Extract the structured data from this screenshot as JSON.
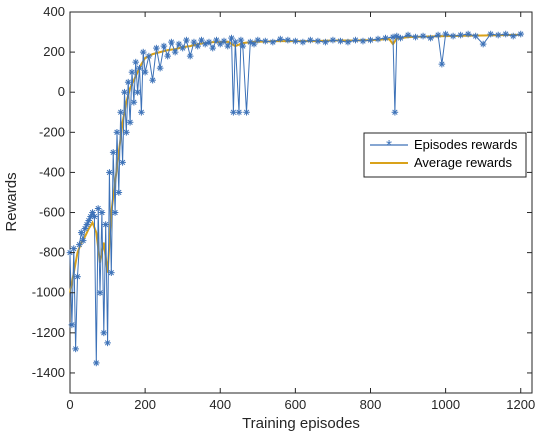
{
  "chart_data": {
    "type": "line",
    "xlabel": "Training episodes",
    "ylabel": "Rewards",
    "xlim": [
      0,
      1230
    ],
    "ylim": [
      -1500,
      400
    ],
    "xticks": [
      0,
      200,
      400,
      600,
      800,
      1000,
      1200
    ],
    "yticks": [
      400,
      200,
      0,
      -200,
      -400,
      -600,
      -800,
      -1000,
      -1200,
      -1400
    ],
    "grid": false,
    "legend_position": "center-right",
    "colors": {
      "episodes": "#3d72b8",
      "average": "#d9a21a",
      "axis": "#262626"
    },
    "series": [
      {
        "name": "Episodes rewards",
        "marker": "asterisk",
        "x": [
          0,
          5,
          10,
          15,
          20,
          25,
          30,
          35,
          40,
          45,
          50,
          55,
          60,
          65,
          70,
          75,
          80,
          85,
          90,
          95,
          100,
          105,
          110,
          115,
          120,
          125,
          130,
          135,
          140,
          145,
          150,
          155,
          160,
          165,
          170,
          175,
          180,
          185,
          190,
          195,
          200,
          210,
          220,
          230,
          240,
          250,
          260,
          270,
          280,
          290,
          300,
          310,
          320,
          330,
          340,
          350,
          360,
          370,
          380,
          390,
          400,
          410,
          420,
          430,
          435,
          440,
          450,
          455,
          460,
          470,
          480,
          490,
          500,
          520,
          540,
          560,
          580,
          600,
          620,
          640,
          660,
          680,
          700,
          720,
          740,
          760,
          780,
          800,
          820,
          840,
          860,
          865,
          870,
          880,
          900,
          920,
          940,
          960,
          980,
          990,
          1000,
          1020,
          1040,
          1060,
          1080,
          1100,
          1120,
          1140,
          1160,
          1180,
          1200
        ],
        "y": [
          -800,
          -1160,
          -780,
          -1280,
          -920,
          -760,
          -700,
          -740,
          -680,
          -660,
          -640,
          -620,
          -600,
          -620,
          -1350,
          -580,
          -1000,
          -600,
          -1200,
          -660,
          -1250,
          -400,
          -900,
          -300,
          -600,
          -200,
          -500,
          -100,
          -350,
          0,
          -200,
          50,
          -150,
          100,
          -50,
          150,
          0,
          120,
          -100,
          200,
          100,
          180,
          60,
          220,
          120,
          230,
          180,
          250,
          200,
          240,
          220,
          260,
          180,
          250,
          230,
          260,
          240,
          250,
          220,
          260,
          240,
          255,
          230,
          270,
          -100,
          250,
          -100,
          260,
          230,
          -100,
          250,
          240,
          260,
          255,
          250,
          265,
          260,
          255,
          250,
          260,
          255,
          250,
          260,
          255,
          250,
          260,
          255,
          260,
          265,
          270,
          275,
          -100,
          280,
          270,
          285,
          275,
          280,
          270,
          285,
          140,
          290,
          280,
          285,
          290,
          280,
          240,
          290,
          285,
          290,
          280,
          290
        ]
      },
      {
        "name": "Average rewards",
        "x": [
          0,
          10,
          20,
          30,
          40,
          50,
          60,
          70,
          80,
          90,
          100,
          110,
          120,
          130,
          140,
          150,
          160,
          170,
          180,
          190,
          200,
          220,
          240,
          260,
          280,
          300,
          320,
          340,
          360,
          380,
          400,
          420,
          440,
          460,
          480,
          500,
          550,
          600,
          650,
          700,
          750,
          800,
          850,
          860,
          870,
          880,
          900,
          950,
          1000,
          1050,
          1100,
          1150,
          1200
        ],
        "y": [
          -1000,
          -900,
          -800,
          -750,
          -720,
          -680,
          -650,
          -700,
          -850,
          -750,
          -900,
          -600,
          -450,
          -300,
          -150,
          -50,
          20,
          60,
          100,
          140,
          170,
          190,
          200,
          210,
          215,
          225,
          230,
          240,
          245,
          250,
          250,
          252,
          230,
          245,
          250,
          252,
          255,
          255,
          255,
          258,
          258,
          260,
          265,
          240,
          268,
          270,
          275,
          278,
          280,
          282,
          283,
          285,
          287
        ]
      }
    ]
  }
}
